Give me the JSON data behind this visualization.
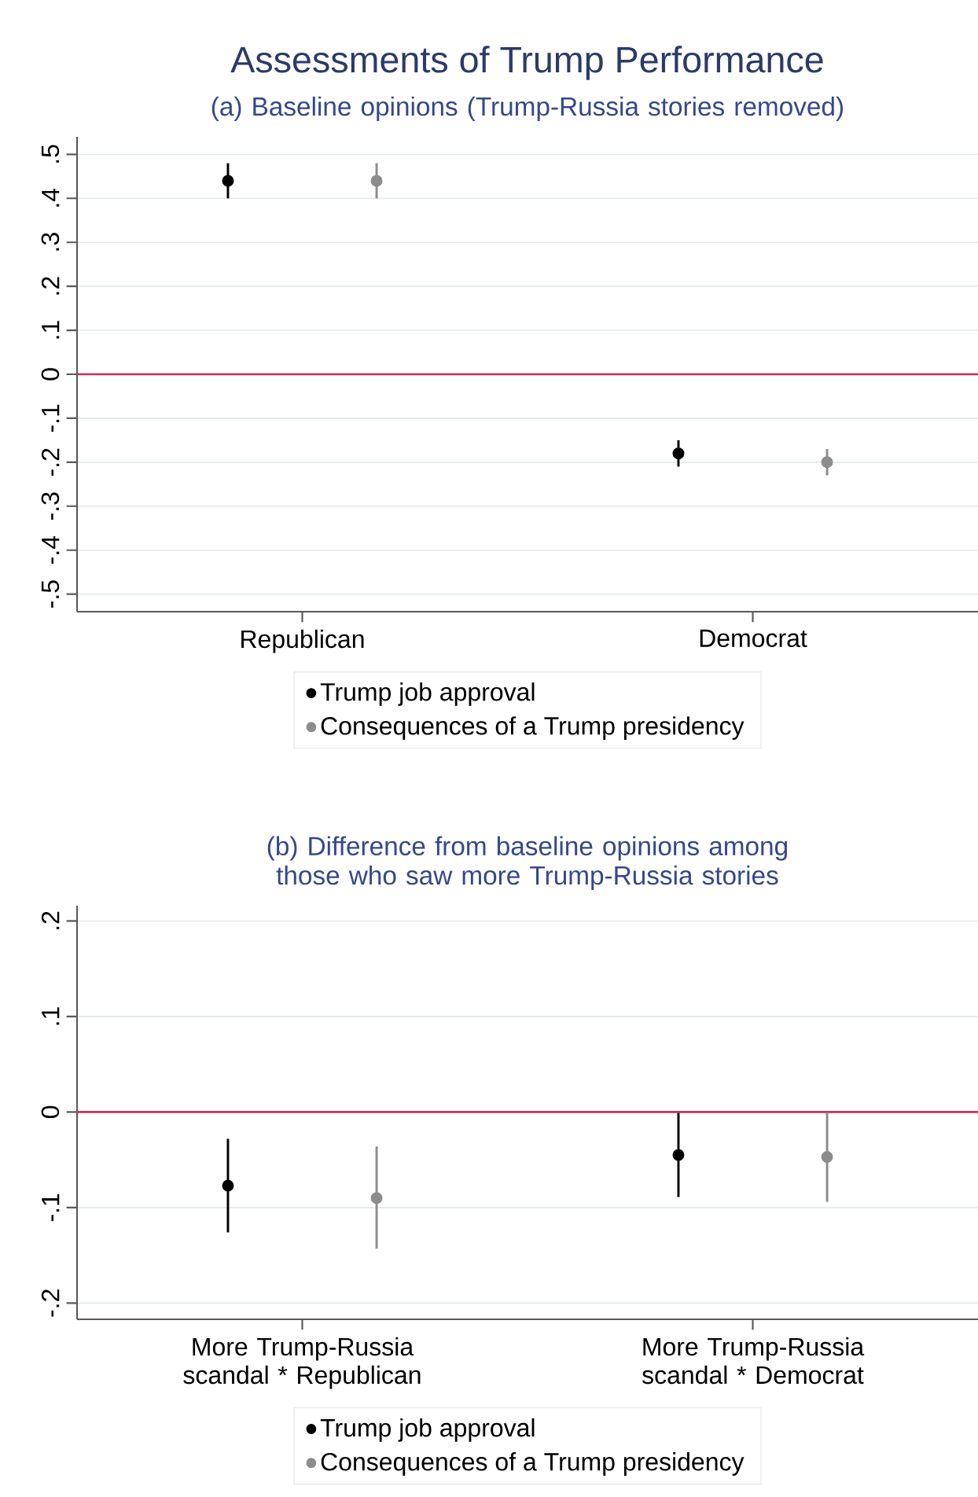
{
  "chart_data": [
    {
      "type": "scatter",
      "title": "Assessments of Trump Performance",
      "subtitle": "(a) Baseline opinions (Trump-Russia stories removed)",
      "categories": [
        "Republican",
        "Democrat"
      ],
      "series": [
        {
          "name": "Trump job approval",
          "color": "#000000",
          "values": [
            0.44,
            -0.18
          ],
          "errors": [
            [
              0.4,
              0.48
            ],
            [
              -0.21,
              -0.15
            ]
          ]
        },
        {
          "name": "Consequences of a Trump presidency",
          "color": "#8c8c8c",
          "values": [
            0.44,
            -0.2
          ],
          "errors": [
            [
              0.4,
              0.48
            ],
            [
              -0.23,
              -0.17
            ]
          ]
        }
      ],
      "ylim": [
        -0.54,
        0.54
      ],
      "yticks": [
        {
          "value": -0.5,
          "label": "-.5"
        },
        {
          "value": -0.4,
          "label": "-.4"
        },
        {
          "value": -0.3,
          "label": "-.3"
        },
        {
          "value": -0.2,
          "label": "-.2"
        },
        {
          "value": -0.1,
          "label": "-.1"
        },
        0,
        {
          "value": 0.1,
          "label": ".1"
        },
        {
          "value": 0.2,
          "label": ".2"
        },
        {
          "value": 0.3,
          "label": ".3"
        },
        {
          "value": 0.4,
          "label": ".4"
        },
        {
          "value": 0.5,
          "label": ".5"
        }
      ],
      "ref_lines": [
        {
          "axis": "y",
          "value": 0,
          "color": "#c8305c"
        }
      ],
      "grid": "y",
      "legend": "bottom",
      "marker": "circle"
    },
    {
      "type": "scatter",
      "title": "(b) Difference from baseline opinions among those who saw more Trump-Russia stories",
      "categories": [
        "More Trump-Russia scandal * Republican",
        "More Trump-Russia scandal * Democrat"
      ],
      "series": [
        {
          "name": "Trump job approval",
          "color": "#000000",
          "values": [
            -0.077,
            -0.045
          ],
          "errors": [
            [
              -0.126,
              -0.028
            ],
            [
              -0.089,
              -0.001
            ]
          ]
        },
        {
          "name": "Consequences of a Trump presidency",
          "color": "#8c8c8c",
          "values": [
            -0.09,
            -0.047
          ],
          "errors": [
            [
              -0.143,
              -0.036
            ],
            [
              -0.094,
              -0.001
            ]
          ]
        }
      ],
      "ylim": [
        -0.217,
        0.216
      ],
      "yticks": [
        {
          "value": -0.2,
          "label": "-.2"
        },
        {
          "value": -0.1,
          "label": "-.1"
        },
        0,
        {
          "value": 0.1,
          "label": ".1"
        },
        {
          "value": 0.2,
          "label": ".2"
        }
      ],
      "ref_lines": [
        {
          "axis": "y",
          "value": 0,
          "color": "#c8305c"
        }
      ],
      "grid": "y",
      "legend": "bottom",
      "marker": "circle"
    }
  ]
}
